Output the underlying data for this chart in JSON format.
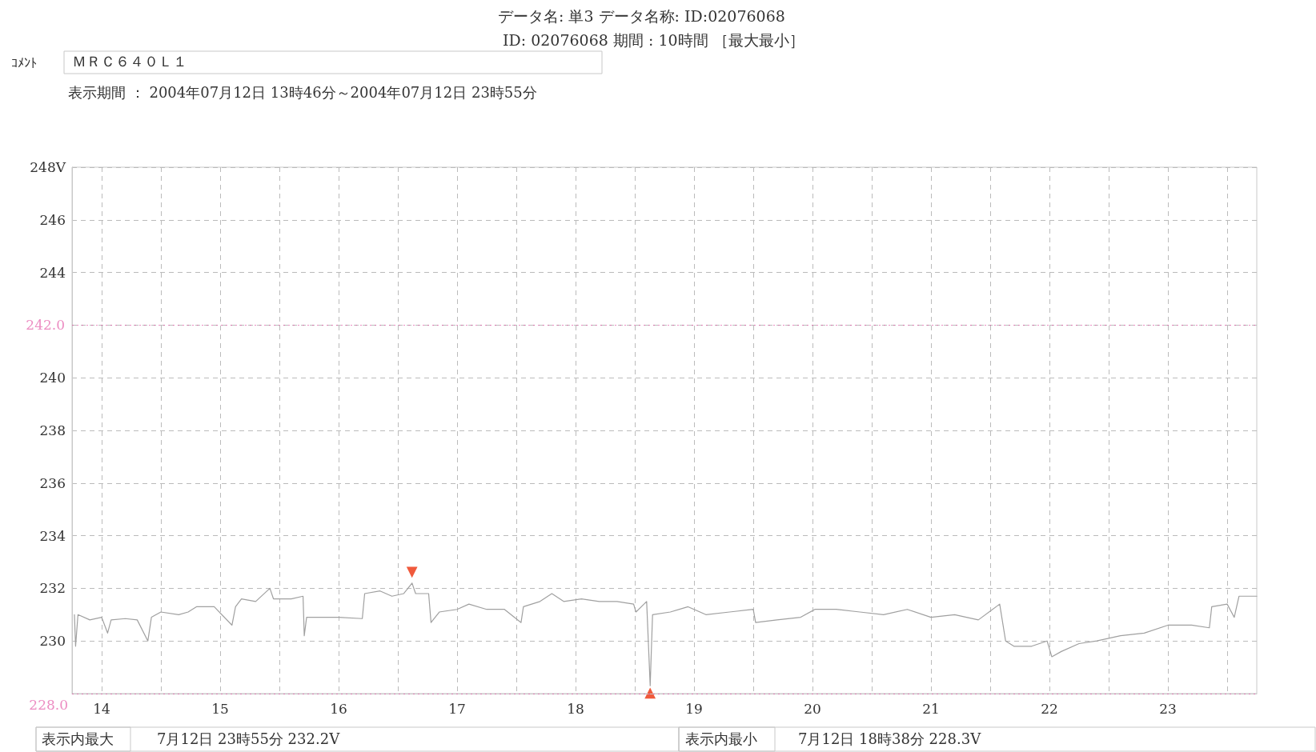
{
  "chart_data": {
    "type": "line",
    "title": "データ名: 単3 データ名称: ID:02076068",
    "subtitle": "ID: 02076068 期間 : 10時間 ［最大最小］",
    "annotations": [
      "ｺﾒﾝﾄ",
      "ＭＲＣ６４０Ｌ１",
      "表示期間 ： 2004年07月12日 13時46分～2004年07月12日 23時55分",
      "表示内最大",
      "7月12日 23時55分 232.2V",
      "表示内最小",
      "7月12日 18時38分 228.3V",
      {
        "text": "▼",
        "x": 16.62,
        "y": 232.2
      },
      {
        "text": "▲",
        "x": 18.63,
        "y": 228.3
      }
    ],
    "x": [
      13.77,
      13.78,
      13.8,
      13.9,
      14.0,
      14.05,
      14.08,
      14.2,
      14.3,
      14.39,
      14.42,
      14.5,
      14.65,
      14.73,
      14.8,
      14.95,
      15.1,
      15.13,
      15.18,
      15.3,
      15.42,
      15.45,
      15.6,
      15.7,
      15.71,
      15.73,
      15.85,
      16.0,
      16.2,
      16.22,
      16.35,
      16.45,
      16.55,
      16.62,
      16.65,
      16.76,
      16.78,
      16.85,
      17.0,
      17.1,
      17.25,
      17.4,
      17.54,
      17.56,
      17.7,
      17.8,
      17.9,
      18.05,
      18.2,
      18.35,
      18.49,
      18.51,
      18.6,
      18.63,
      18.65,
      18.8,
      18.95,
      19.1,
      19.3,
      19.5,
      19.52,
      19.7,
      19.9,
      20.02,
      20.2,
      20.4,
      20.6,
      20.8,
      21.0,
      21.2,
      21.4,
      21.58,
      21.63,
      21.7,
      21.85,
      21.98,
      22.02,
      22.1,
      22.25,
      22.4,
      22.6,
      22.8,
      23.0,
      23.2,
      23.35,
      23.37,
      23.5,
      23.56,
      23.6,
      23.75
    ],
    "series": [
      {
        "color": "#a0a0a0",
        "values": [
          231.0,
          229.8,
          231.0,
          230.8,
          230.9,
          230.3,
          230.8,
          230.85,
          230.8,
          230.0,
          230.9,
          231.1,
          231.0,
          231.1,
          231.3,
          231.3,
          230.6,
          231.3,
          231.6,
          231.5,
          232.0,
          231.6,
          231.6,
          231.7,
          230.2,
          230.9,
          230.9,
          230.9,
          230.85,
          231.8,
          231.9,
          231.7,
          231.8,
          232.2,
          231.8,
          231.8,
          230.7,
          231.1,
          231.2,
          231.4,
          231.2,
          231.2,
          230.7,
          231.3,
          231.5,
          231.8,
          231.5,
          231.6,
          231.5,
          231.5,
          231.4,
          231.1,
          231.5,
          228.3,
          231.0,
          231.1,
          231.3,
          231.0,
          231.1,
          231.2,
          230.7,
          230.8,
          230.9,
          231.2,
          231.2,
          231.1,
          231.0,
          231.2,
          230.9,
          231.0,
          230.8,
          231.4,
          230.0,
          229.8,
          229.8,
          230.0,
          229.4,
          229.6,
          229.9,
          230.0,
          230.2,
          230.3,
          230.6,
          230.6,
          230.5,
          231.3,
          231.4,
          230.9,
          231.7,
          231.7
        ]
      }
    ],
    "xlim": [
      13.75,
      23.75
    ],
    "xticks": [
      14,
      {
        "value": 14.5,
        "label": null
      },
      15,
      {
        "value": 15.5,
        "label": null
      },
      16,
      {
        "value": 16.5,
        "label": null
      },
      17,
      {
        "value": 17.5,
        "label": null
      },
      18,
      {
        "value": 18.5,
        "label": null
      },
      19,
      {
        "value": 19.5,
        "label": null
      },
      20,
      {
        "value": 20.5,
        "label": null
      },
      21,
      {
        "value": 21.5,
        "label": null
      },
      22,
      {
        "value": 22.5,
        "label": null
      },
      23,
      {
        "value": 23.5,
        "label": null
      }
    ],
    "ylim": [
      228,
      248
    ],
    "yticks": [
      230,
      232,
      234,
      236,
      238,
      240,
      {
        "value": 242,
        "label": null
      },
      244,
      246,
      {
        "value": 248,
        "label": "248V"
      }
    ],
    "ref_lines": [
      {
        "axis": "y",
        "value": 242,
        "label": "242.0",
        "color": "#e0409a"
      },
      {
        "axis": "y",
        "value": 228,
        "label": "228.0",
        "color": "#e0409a"
      }
    ],
    "grid": true,
    "marker": "none",
    "line_style": "solid"
  }
}
